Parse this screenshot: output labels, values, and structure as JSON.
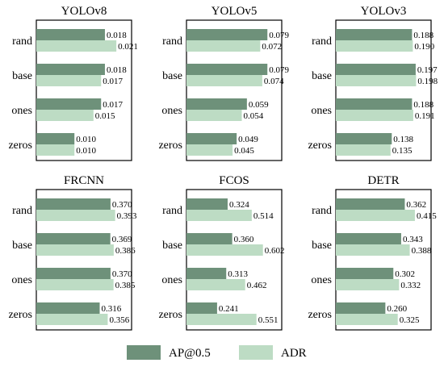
{
  "chart_data": [
    {
      "type": "bar",
      "orientation": "horizontal",
      "title": "YOLOv8",
      "categories": [
        "rand",
        "base",
        "ones",
        "zeros"
      ],
      "xlim": [
        0,
        0.025
      ],
      "series": [
        {
          "name": "AP@0.5",
          "values": [
            0.018,
            0.018,
            0.017,
            0.01
          ],
          "labels": [
            "0.018",
            "0.018",
            "0.017",
            "0.010"
          ]
        },
        {
          "name": "ADR",
          "values": [
            0.021,
            0.017,
            0.015,
            0.01
          ],
          "labels": [
            "0.021",
            "0.017",
            "0.015",
            "0.010"
          ]
        }
      ]
    },
    {
      "type": "bar",
      "orientation": "horizontal",
      "title": "YOLOv5",
      "categories": [
        "rand",
        "base",
        "ones",
        "zeros"
      ],
      "xlim": [
        0,
        0.093
      ],
      "series": [
        {
          "name": "AP@0.5",
          "values": [
            0.079,
            0.079,
            0.059,
            0.049
          ],
          "labels": [
            "0.079",
            "0.079",
            "0.059",
            "0.049"
          ]
        },
        {
          "name": "ADR",
          "values": [
            0.072,
            0.074,
            0.054,
            0.045
          ],
          "labels": [
            "0.072",
            "0.074",
            "0.054",
            "0.045"
          ]
        }
      ]
    },
    {
      "type": "bar",
      "orientation": "horizontal",
      "title": "YOLOv3",
      "categories": [
        "rand",
        "base",
        "ones",
        "zeros"
      ],
      "xlim": [
        0,
        0.235
      ],
      "series": [
        {
          "name": "AP@0.5",
          "values": [
            0.188,
            0.197,
            0.188,
            0.138
          ],
          "labels": [
            "0.188",
            "0.197",
            "0.188",
            "0.138"
          ]
        },
        {
          "name": "ADR",
          "values": [
            0.19,
            0.198,
            0.191,
            0.135
          ],
          "labels": [
            "0.190",
            "0.198",
            "0.191",
            "0.135"
          ]
        }
      ]
    },
    {
      "type": "bar",
      "orientation": "horizontal",
      "title": "FRCNN",
      "categories": [
        "rand",
        "base",
        "ones",
        "zeros"
      ],
      "xlim": [
        0,
        0.475
      ],
      "series": [
        {
          "name": "AP@0.5",
          "values": [
            0.37,
            0.369,
            0.37,
            0.316
          ],
          "labels": [
            "0.370",
            "0.369",
            "0.370",
            "0.316"
          ]
        },
        {
          "name": "ADR",
          "values": [
            0.393,
            0.386,
            0.385,
            0.356
          ],
          "labels": [
            "0.393",
            "0.386",
            "0.385",
            "0.356"
          ]
        }
      ]
    },
    {
      "type": "bar",
      "orientation": "horizontal",
      "title": "FCOS",
      "categories": [
        "rand",
        "base",
        "ones",
        "zeros"
      ],
      "xlim": [
        0,
        0.75
      ],
      "series": [
        {
          "name": "AP@0.5",
          "values": [
            0.324,
            0.36,
            0.313,
            0.241
          ],
          "labels": [
            "0.324",
            "0.360",
            "0.313",
            "0.241"
          ]
        },
        {
          "name": "ADR",
          "values": [
            0.514,
            0.602,
            0.462,
            0.551
          ],
          "labels": [
            "0.514",
            "0.602",
            "0.462",
            "0.551"
          ]
        }
      ]
    },
    {
      "type": "bar",
      "orientation": "horizontal",
      "title": "DETR",
      "categories": [
        "rand",
        "base",
        "ones",
        "zeros"
      ],
      "xlim": [
        0,
        0.5
      ],
      "series": [
        {
          "name": "AP@0.5",
          "values": [
            0.362,
            0.343,
            0.302,
            0.26
          ],
          "labels": [
            "0.362",
            "0.343",
            "0.302",
            "0.260"
          ]
        },
        {
          "name": "ADR",
          "values": [
            0.415,
            0.388,
            0.332,
            0.325
          ],
          "labels": [
            "0.415",
            "0.388",
            "0.332",
            "0.325"
          ]
        }
      ]
    }
  ],
  "legend": {
    "placement": "bottom-center",
    "items": [
      {
        "label": "AP@0.5",
        "color": "#6e917a"
      },
      {
        "label": "ADR",
        "color": "#bddcc4"
      }
    ]
  },
  "colors": {
    "ap": "#6e917a",
    "adr": "#bddcc4",
    "frame": "#000000"
  }
}
